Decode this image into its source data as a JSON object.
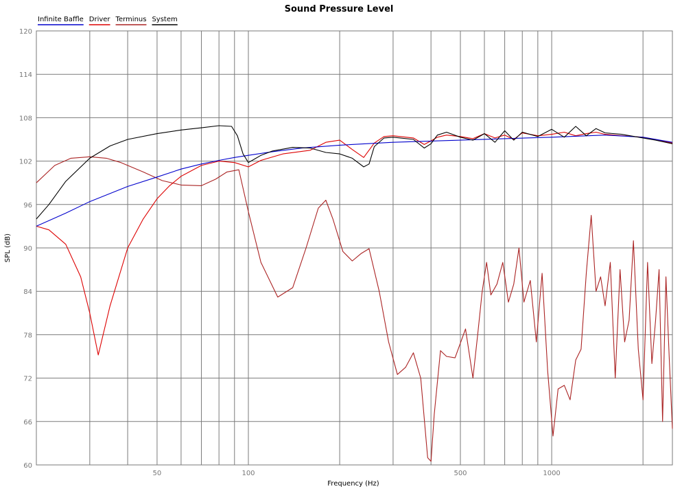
{
  "chart_data": {
    "type": "line",
    "title": "Sound Pressure Level",
    "xlabel": "Frequency (Hz)",
    "ylabel": "SPL (dB)",
    "xscale": "log",
    "xlim": [
      20,
      2500
    ],
    "ylim": [
      60,
      120
    ],
    "yticks": [
      60,
      66,
      72,
      78,
      84,
      90,
      96,
      102,
      108,
      114,
      120
    ],
    "xtick_labels": [
      {
        "value": 50,
        "label": "50"
      },
      {
        "value": 100,
        "label": "100"
      },
      {
        "value": 500,
        "label": "500"
      },
      {
        "value": 1000,
        "label": "1000"
      }
    ],
    "x_gridlines": [
      30,
      40,
      50,
      60,
      70,
      80,
      90,
      100,
      200,
      300,
      400,
      500,
      600,
      700,
      800,
      900,
      1000,
      2000
    ],
    "grid": true,
    "legend_position": "top-left",
    "colors": {
      "infinite_baffle": "#0000cc",
      "driver": "#dd0000",
      "terminus": "#aa2222",
      "system": "#000000",
      "grid": "#7a7a7a",
      "tick_text": "#777777"
    },
    "series": [
      {
        "name": "Infinite Baffle",
        "color": "#0000cc",
        "x": [
          20,
          25,
          30,
          40,
          50,
          60,
          70,
          80,
          90,
          100,
          120,
          150,
          200,
          300,
          500,
          700,
          1000,
          1500,
          2000,
          2500
        ],
        "y": [
          93,
          94.8,
          96.4,
          98.5,
          99.8,
          100.9,
          101.6,
          102.1,
          102.5,
          102.8,
          103.3,
          103.8,
          104.2,
          104.6,
          104.9,
          105.1,
          105.3,
          105.6,
          105.3,
          104.6
        ]
      },
      {
        "name": "Driver",
        "color": "#dd0000",
        "x": [
          20,
          22,
          25,
          28,
          30,
          32,
          35,
          40,
          45,
          50,
          55,
          60,
          70,
          80,
          90,
          100,
          110,
          130,
          160,
          180,
          200,
          220,
          240,
          260,
          280,
          300,
          350,
          380,
          400,
          420,
          450,
          500,
          550,
          600,
          650,
          700,
          750,
          800,
          900,
          1000,
          1100,
          1200,
          1300,
          1400,
          1500,
          1700,
          2000,
          2200,
          2500
        ],
        "y": [
          93,
          92.5,
          90.5,
          86,
          81,
          75.2,
          82,
          90,
          94,
          96.8,
          98.6,
          99.9,
          101.4,
          102,
          101.8,
          101.2,
          102.1,
          103,
          103.5,
          104.6,
          104.9,
          103.6,
          102.5,
          104.5,
          105.4,
          105.5,
          105.2,
          104.3,
          104.8,
          105.3,
          105.6,
          105.4,
          105.1,
          105.8,
          105.2,
          105.6,
          105,
          105.9,
          105.5,
          105.7,
          106,
          105.5,
          105.8,
          106,
          105.7,
          105.5,
          105.3,
          105,
          104.5
        ]
      },
      {
        "name": "Terminus",
        "color": "#aa2222",
        "x": [
          20,
          23,
          26,
          30,
          34,
          38,
          45,
          52,
          60,
          70,
          78,
          85,
          93,
          100,
          110,
          125,
          140,
          155,
          170,
          180,
          190,
          205,
          220,
          235,
          250,
          270,
          290,
          310,
          330,
          350,
          370,
          390,
          400,
          410,
          430,
          450,
          480,
          520,
          550,
          570,
          590,
          610,
          630,
          660,
          690,
          720,
          750,
          780,
          810,
          850,
          890,
          930,
          970,
          1010,
          1050,
          1100,
          1150,
          1200,
          1250,
          1300,
          1350,
          1400,
          1450,
          1500,
          1560,
          1620,
          1680,
          1740,
          1800,
          1860,
          1930,
          2000,
          2070,
          2140,
          2200,
          2260,
          2320,
          2380,
          2440,
          2500
        ],
        "y": [
          99,
          101.4,
          102.4,
          102.6,
          102.4,
          101.8,
          100.5,
          99.3,
          98.7,
          98.6,
          99.5,
          100.5,
          100.8,
          95,
          88,
          83.2,
          84.5,
          90,
          95.5,
          96.6,
          94,
          89.5,
          88.2,
          89.2,
          89.9,
          84,
          77,
          72.5,
          73.5,
          75.5,
          72,
          61,
          60.5,
          67,
          75.8,
          75,
          74.8,
          78.8,
          72,
          78,
          84,
          88,
          83.5,
          85,
          88,
          82.5,
          85,
          90,
          82.5,
          85.5,
          77,
          86.5,
          73,
          64,
          70.5,
          71,
          69,
          74.5,
          76,
          86.5,
          94.5,
          84,
          86,
          82,
          88,
          72,
          87,
          77,
          80,
          91,
          76,
          69,
          88,
          74,
          80,
          87,
          66,
          86,
          75,
          65
        ]
      },
      {
        "name": "System",
        "color": "#000000",
        "x": [
          20,
          22,
          25,
          30,
          35,
          40,
          50,
          60,
          70,
          80,
          88,
          92,
          96,
          100,
          105,
          110,
          120,
          140,
          160,
          180,
          200,
          220,
          240,
          250,
          260,
          280,
          300,
          350,
          380,
          400,
          420,
          450,
          500,
          550,
          600,
          650,
          700,
          750,
          800,
          900,
          1000,
          1100,
          1200,
          1300,
          1400,
          1500,
          1700,
          2000,
          2200,
          2500
        ],
        "y": [
          94,
          96,
          99.2,
          102.4,
          104.1,
          105,
          105.8,
          106.3,
          106.6,
          106.9,
          106.8,
          105.5,
          103,
          101.8,
          102.3,
          102.8,
          103.4,
          103.9,
          103.8,
          103.2,
          103,
          102.4,
          101.2,
          101.6,
          104,
          105.2,
          105.3,
          105,
          103.8,
          104.4,
          105.6,
          106,
          105.3,
          104.9,
          105.8,
          104.6,
          106.2,
          104.9,
          106,
          105.4,
          106.4,
          105.3,
          106.8,
          105.5,
          106.5,
          105.9,
          105.7,
          105.2,
          104.9,
          104.4
        ]
      }
    ]
  }
}
